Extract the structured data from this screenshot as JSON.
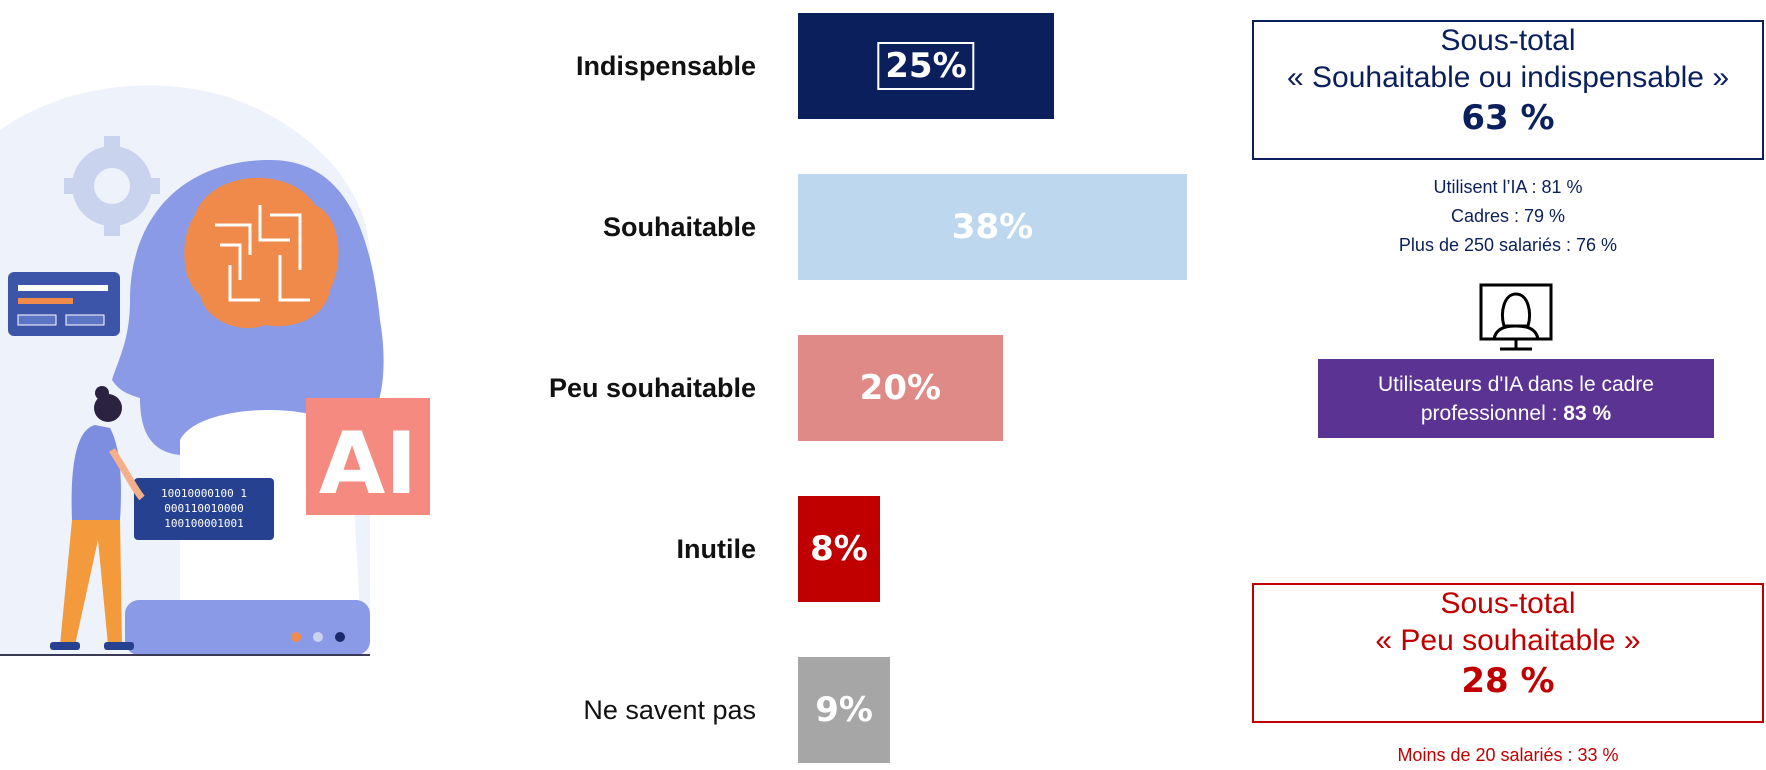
{
  "illustration": {
    "badge_text": "AI",
    "binary_lines": [
      "10010000100 1",
      "000110010000",
      "100100001001"
    ]
  },
  "chart_data": {
    "type": "bar",
    "orientation": "horizontal",
    "categories": [
      "Indispensable",
      "Souhaitable",
      "Peu souhaitable",
      "Inutile",
      "Ne savent pas"
    ],
    "values": [
      25,
      38,
      20,
      8,
      9
    ],
    "value_labels": [
      "25%",
      "38%",
      "20%",
      "8%",
      "9%"
    ],
    "colors": [
      "#0b1f5c",
      "#bdd7ee",
      "#e08a87",
      "#c00000",
      "#a6a6a6"
    ],
    "bold_categories": [
      true,
      true,
      true,
      true,
      false
    ],
    "xlim": [
      0,
      38
    ]
  },
  "subtotal_positive": {
    "line1": "Sous-total",
    "line2": "« Souhaitable ou indispensable »",
    "value": "63 %",
    "details": [
      "Utilisent l’IA : 81 %",
      "Cadres : 79 %",
      "Plus de 250 salariés : 76 %"
    ]
  },
  "users_box": {
    "text": "Utilisateurs d'IA dans le cadre professionnel : ",
    "value": "83 %"
  },
  "subtotal_negative": {
    "line1": "Sous-total",
    "line2": "« Peu souhaitable »",
    "value": "28 %",
    "details": [
      "Moins de 20 salariés : 33 %"
    ]
  },
  "colors": {
    "navy": "#0b1f5c",
    "red": "#c00000",
    "purple": "#5b3393"
  }
}
